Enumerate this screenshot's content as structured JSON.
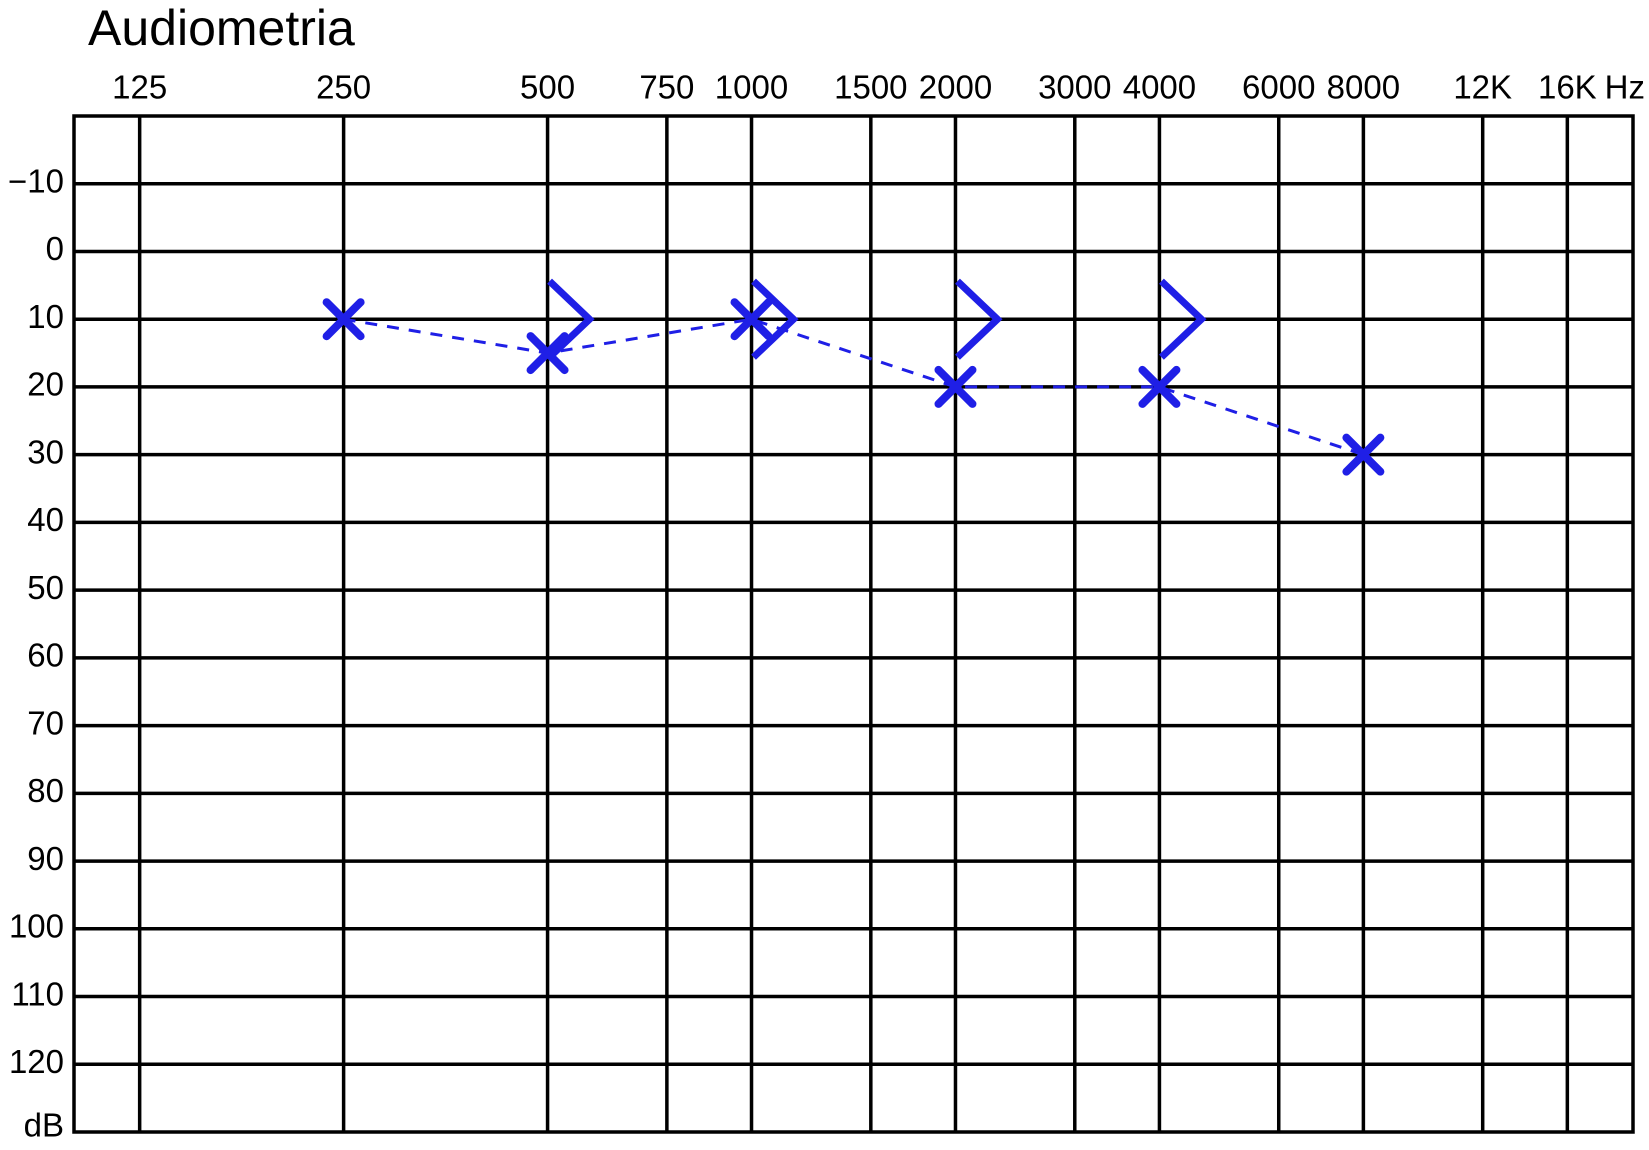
{
  "chart_data": {
    "type": "line",
    "title": "Audiometria",
    "xscale": "log",
    "xlim": [
      100,
      20000
    ],
    "xticks": [
      125,
      250,
      500,
      750,
      1000,
      1500,
      2000,
      3000,
      4000,
      6000,
      8000,
      {
        "value": 12000,
        "label": "12K"
      },
      {
        "value": 16000,
        "label": "16K"
      }
    ],
    "xlabel": "Hz",
    "ylim": [
      -20,
      130
    ],
    "yinverted": true,
    "yticks": [
      {
        "value": -10,
        "label": "−10"
      },
      0,
      10,
      20,
      30,
      40,
      50,
      60,
      70,
      80,
      90,
      100,
      110,
      120
    ],
    "ylabel": "dB",
    "grid": true,
    "series": [
      {
        "color": "#1f1fe6",
        "marker": "x",
        "linestyle": "dashed",
        "x": [
          250,
          500,
          1000,
          2000,
          4000,
          8000
        ],
        "values": [
          10,
          15,
          10,
          20,
          20,
          30
        ]
      },
      {
        "color": "#1f1fe6",
        "marker": ">",
        "linestyle": "none",
        "x": [
          500,
          1000,
          2000,
          4000
        ],
        "values": [
          10,
          10,
          10,
          10
        ]
      }
    ]
  }
}
